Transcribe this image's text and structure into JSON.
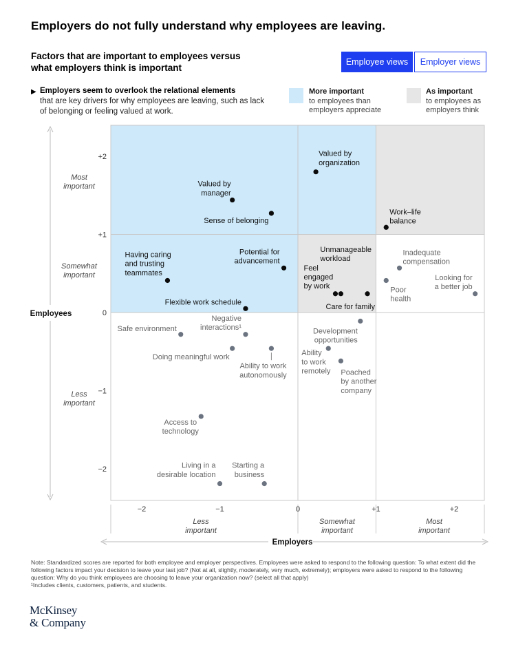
{
  "header": {
    "title": "Employers do not fully understand why employees are leaving.",
    "subtitle": "Factors that are important to employees versus what employers think is important"
  },
  "tabs": [
    {
      "label": "Employee views",
      "active": true
    },
    {
      "label": "Employer views",
      "active": false
    }
  ],
  "callout": {
    "lead": "Employers seem to overlook the relational elements",
    "rest": "that are key drivers for why employees are leaving, such as lack of belonging or feeling valued at work."
  },
  "legend": [
    {
      "title": "More important",
      "text": "to employees than employers appreciate",
      "color": "#cde9fa"
    },
    {
      "title": "As important",
      "text": "to employees as employers think",
      "color": "#e6e6e6"
    }
  ],
  "chart_data": {
    "type": "scatter",
    "xlabel": "Employers",
    "ylabel": "Employees",
    "xlim": [
      -2.5,
      2.4
    ],
    "ylim": [
      -2.4,
      2.4
    ],
    "x_ticks": [
      "−2",
      "−1",
      "0",
      "+1",
      "+2"
    ],
    "y_ticks": [
      "+2",
      "+1",
      "0",
      "−1",
      "−2"
    ],
    "x_category_labels": [
      "Less important",
      "Somewhat important",
      "Most important"
    ],
    "y_category_labels": [
      "Most important",
      "Somewhat important",
      "Less important"
    ],
    "regions": [
      {
        "name": "more-important",
        "x": [
          -2.5,
          1.0
        ],
        "y": [
          0,
          2.4
        ],
        "color": "#cde9fa"
      },
      {
        "name": "more-important-upper",
        "x": [
          0,
          1.0
        ],
        "y": [
          1.0,
          2.4
        ],
        "color": "#cde9fa"
      },
      {
        "name": "as-important-top",
        "x": [
          1.0,
          2.4
        ],
        "y": [
          1.0,
          2.4
        ],
        "color": "#e6e6e6"
      },
      {
        "name": "as-important-mid",
        "x": [
          0,
          1.0
        ],
        "y": [
          0,
          1.0
        ],
        "color": "#e6e6e6"
      }
    ],
    "points": [
      {
        "label": "Valued by organization",
        "x": 0.23,
        "y": 1.8,
        "group": "dark"
      },
      {
        "label": "Valued by manager",
        "x": -0.84,
        "y": 1.44,
        "group": "dark"
      },
      {
        "label": "Sense of belonging",
        "x": -0.34,
        "y": 1.27,
        "group": "dark"
      },
      {
        "label": "Work–life balance",
        "x": 1.13,
        "y": 1.09,
        "group": "dark"
      },
      {
        "label": "Having caring and trusting teammates",
        "x": -1.67,
        "y": 0.41,
        "group": "dark"
      },
      {
        "label": "Potential for advancement",
        "x": -0.18,
        "y": 0.57,
        "group": "dark"
      },
      {
        "label": "Flexible work schedule",
        "x": -0.67,
        "y": 0.05,
        "group": "dark"
      },
      {
        "label": "Unmanageable workload",
        "x": 0.55,
        "y": 0.24,
        "group": "dark"
      },
      {
        "label": "Feel engaged by work",
        "x": 0.48,
        "y": 0.24,
        "group": "dark"
      },
      {
        "label": "Care for family",
        "x": 0.89,
        "y": 0.24,
        "group": "dark"
      },
      {
        "label": "Inadequate compensation",
        "x": 1.3,
        "y": 0.57,
        "group": "gray"
      },
      {
        "label": "Poor health",
        "x": 1.13,
        "y": 0.41,
        "group": "gray"
      },
      {
        "label": "Looking for a better job",
        "x": 2.27,
        "y": 0.24,
        "group": "gray"
      },
      {
        "label": "Safe environment",
        "x": -1.5,
        "y": -0.28,
        "group": "gray"
      },
      {
        "label": "Negative interactions¹",
        "x": -0.67,
        "y": -0.28,
        "group": "gray"
      },
      {
        "label": "Doing meaningful work",
        "x": -0.84,
        "y": -0.46,
        "group": "gray"
      },
      {
        "label": "Ability to work autonomously",
        "x": -0.34,
        "y": -0.46,
        "group": "gray"
      },
      {
        "label": "Development opportunities",
        "x": 0.8,
        "y": -0.11,
        "group": "gray"
      },
      {
        "label": "Ability to work remotely",
        "x": 0.39,
        "y": -0.46,
        "group": "gray"
      },
      {
        "label": "Poached by another company",
        "x": 0.55,
        "y": -0.62,
        "group": "gray"
      },
      {
        "label": "Access to technology",
        "x": -1.24,
        "y": -1.33,
        "group": "gray"
      },
      {
        "label": "Living in a desirable location",
        "x": -1.0,
        "y": -2.19,
        "group": "gray"
      },
      {
        "label": "Starting a business",
        "x": -0.43,
        "y": -2.19,
        "group": "gray"
      }
    ]
  },
  "notes": {
    "note": "Note: Standardized scores are reported for both employee and employer perspectives. Employees were asked to respond to the following question: To what extent did the following factors impact your decision to leave your last job? (Not at all, slightly, moderately, very much, extremely); employers were asked to respond to the following question: Why do you think employees are choosing to leave your organization now? (select all that apply)",
    "footnote": "¹Includes clients, customers, patients, and students."
  },
  "logo": {
    "line1": "McKinsey",
    "line2": "& Company"
  }
}
